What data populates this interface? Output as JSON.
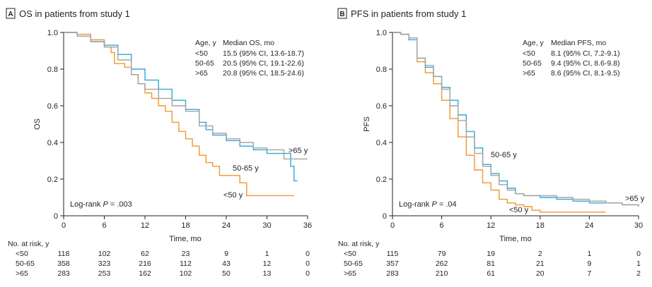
{
  "colors": {
    "lt50": "#F0962D",
    "r50_65": "#2BAAD8",
    "gt65": "#A7A29D",
    "axis": "#231f20"
  },
  "chart_data": [
    {
      "type": "line",
      "panel": "A",
      "title": "OS in patients from study 1",
      "xlabel": "Time, mo",
      "ylabel": "OS",
      "xlim": [
        0,
        36
      ],
      "ylim": [
        0,
        1.0
      ],
      "xticks": [
        "0",
        "6",
        "12",
        "18",
        "24",
        "30",
        "36"
      ],
      "yticks": [
        "0",
        "0.2",
        "0.4",
        "0.6",
        "0.8",
        "1.0"
      ],
      "legend_header": [
        "Age, y",
        "Median OS, mo"
      ],
      "legend_rows": [
        {
          "age": "<50",
          "median": "15.5 (95% CI, 13.6-18.7)"
        },
        {
          "age": "50-65",
          "median": "20.5 (95% CI, 19.1-22.6)"
        },
        {
          "age": ">65",
          "median": "20.8 (95% CI, 18.5-24.6)"
        }
      ],
      "annotation_pre": "Log-rank ",
      "annotation_p": "P",
      "annotation_post": " = .003",
      "curve_labels": {
        "lt50": "<50 y",
        "r50_65": "50-65 y",
        "gt65": ">65 y"
      },
      "series": [
        {
          "key": "lt50",
          "name": "<50",
          "points": [
            [
              0,
              1.0
            ],
            [
              2,
              0.99
            ],
            [
              4,
              0.96
            ],
            [
              6,
              0.92
            ],
            [
              7,
              0.89
            ],
            [
              7.5,
              0.83
            ],
            [
              9,
              0.81
            ],
            [
              10,
              0.77
            ],
            [
              11,
              0.72
            ],
            [
              12,
              0.67
            ],
            [
              13,
              0.64
            ],
            [
              14,
              0.6
            ],
            [
              15,
              0.57
            ],
            [
              16,
              0.51
            ],
            [
              17,
              0.46
            ],
            [
              18,
              0.42
            ],
            [
              19,
              0.38
            ],
            [
              20,
              0.33
            ],
            [
              21,
              0.29
            ],
            [
              22,
              0.27
            ],
            [
              23,
              0.22
            ],
            [
              24,
              0.22
            ],
            [
              26,
              0.18
            ],
            [
              27,
              0.11
            ],
            [
              34,
              0.11
            ]
          ]
        },
        {
          "key": "r50_65",
          "name": "50-65",
          "points": [
            [
              0,
              1.0
            ],
            [
              2,
              0.98
            ],
            [
              4,
              0.95
            ],
            [
              6,
              0.93
            ],
            [
              8,
              0.88
            ],
            [
              10,
              0.8
            ],
            [
              12,
              0.74
            ],
            [
              14,
              0.69
            ],
            [
              16,
              0.63
            ],
            [
              18,
              0.58
            ],
            [
              20,
              0.51
            ],
            [
              21,
              0.47
            ],
            [
              22,
              0.44
            ],
            [
              24,
              0.41
            ],
            [
              26,
              0.38
            ],
            [
              28,
              0.36
            ],
            [
              30,
              0.34
            ],
            [
              33,
              0.34
            ],
            [
              33.5,
              0.27
            ],
            [
              34,
              0.19
            ],
            [
              34.5,
              0.19
            ]
          ]
        },
        {
          "key": "gt65",
          "name": ">65",
          "points": [
            [
              0,
              1.0
            ],
            [
              2,
              0.98
            ],
            [
              4,
              0.95
            ],
            [
              6,
              0.92
            ],
            [
              8,
              0.85
            ],
            [
              10,
              0.77
            ],
            [
              11,
              0.72
            ],
            [
              12,
              0.69
            ],
            [
              14,
              0.64
            ],
            [
              16,
              0.6
            ],
            [
              18,
              0.57
            ],
            [
              20,
              0.49
            ],
            [
              22,
              0.45
            ],
            [
              24,
              0.42
            ],
            [
              26,
              0.4
            ],
            [
              28,
              0.37
            ],
            [
              30,
              0.36
            ],
            [
              32,
              0.36
            ],
            [
              32.5,
              0.31
            ],
            [
              36,
              0.31
            ]
          ]
        }
      ],
      "risk_table": {
        "header": "No. at risk, y",
        "times": [
          "0",
          "6",
          "12",
          "18",
          "24",
          "30",
          "36"
        ],
        "rows": [
          {
            "label": "<50",
            "values": [
              "118",
              "102",
              "62",
              "23",
              "9",
              "1",
              "0"
            ]
          },
          {
            "label": "50-65",
            "values": [
              "358",
              "323",
              "216",
              "112",
              "43",
              "12",
              "0"
            ]
          },
          {
            "label": ">65",
            "values": [
              "283",
              "253",
              "162",
              "102",
              "50",
              "13",
              "0"
            ]
          }
        ]
      }
    },
    {
      "type": "line",
      "panel": "B",
      "title": "PFS in patients from study 1",
      "xlabel": "Time, mo",
      "ylabel": "PFS",
      "xlim": [
        0,
        30
      ],
      "ylim": [
        0,
        1.0
      ],
      "xticks": [
        "0",
        "6",
        "12",
        "18",
        "24",
        "30"
      ],
      "yticks": [
        "0",
        "0.2",
        "0.4",
        "0.6",
        "0.8",
        "1.0"
      ],
      "legend_header": [
        "Age, y",
        "Median PFS, mo"
      ],
      "legend_rows": [
        {
          "age": "<50",
          "median": "8.1 (95% CI, 7.2-9.1)"
        },
        {
          "age": "50-65",
          "median": "9.4 (95% CI, 8.6-9.8)"
        },
        {
          "age": ">65",
          "median": "8.6 (95% CI, 8.1-9.5)"
        }
      ],
      "annotation_pre": "Log-rank ",
      "annotation_p": "P",
      "annotation_post": " = .04",
      "curve_labels": {
        "lt50": "<50 y",
        "r50_65": "50-65 y",
        "gt65": ">65 y"
      },
      "series": [
        {
          "key": "lt50",
          "name": "<50",
          "points": [
            [
              0,
              1.0
            ],
            [
              1,
              0.99
            ],
            [
              2,
              0.97
            ],
            [
              3,
              0.84
            ],
            [
              4,
              0.78
            ],
            [
              5,
              0.72
            ],
            [
              6,
              0.63
            ],
            [
              7,
              0.53
            ],
            [
              8,
              0.43
            ],
            [
              9,
              0.33
            ],
            [
              10,
              0.25
            ],
            [
              11,
              0.18
            ],
            [
              12,
              0.14
            ],
            [
              13,
              0.09
            ],
            [
              14,
              0.07
            ],
            [
              15,
              0.06
            ],
            [
              16,
              0.05
            ],
            [
              17,
              0.03
            ],
            [
              18,
              0.02
            ],
            [
              26,
              0.02
            ]
          ]
        },
        {
          "key": "r50_65",
          "name": "50-65",
          "points": [
            [
              0,
              1.0
            ],
            [
              1,
              0.99
            ],
            [
              2,
              0.96
            ],
            [
              3,
              0.86
            ],
            [
              4,
              0.81
            ],
            [
              5,
              0.76
            ],
            [
              6,
              0.7
            ],
            [
              7,
              0.63
            ],
            [
              8,
              0.55
            ],
            [
              9,
              0.46
            ],
            [
              10,
              0.37
            ],
            [
              11,
              0.28
            ],
            [
              12,
              0.23
            ],
            [
              13,
              0.19
            ],
            [
              14,
              0.15
            ],
            [
              15,
              0.12
            ],
            [
              16,
              0.11
            ],
            [
              18,
              0.1
            ],
            [
              20,
              0.09
            ],
            [
              22,
              0.08
            ],
            [
              24,
              0.07
            ],
            [
              26,
              0.07
            ],
            [
              28,
              0.06
            ],
            [
              30,
              0.05
            ]
          ]
        },
        {
          "key": "gt65",
          "name": ">65",
          "points": [
            [
              0,
              1.0
            ],
            [
              1,
              0.99
            ],
            [
              2,
              0.97
            ],
            [
              3,
              0.86
            ],
            [
              4,
              0.82
            ],
            [
              5,
              0.76
            ],
            [
              6,
              0.69
            ],
            [
              7,
              0.6
            ],
            [
              8,
              0.52
            ],
            [
              9,
              0.43
            ],
            [
              10,
              0.34
            ],
            [
              11,
              0.27
            ],
            [
              12,
              0.22
            ],
            [
              13,
              0.17
            ],
            [
              14,
              0.14
            ],
            [
              15,
              0.12
            ],
            [
              16,
              0.11
            ],
            [
              18,
              0.11
            ],
            [
              20,
              0.1
            ],
            [
              22,
              0.09
            ],
            [
              24,
              0.08
            ],
            [
              26,
              0.07
            ],
            [
              28,
              0.06
            ],
            [
              30,
              0.05
            ]
          ]
        }
      ],
      "risk_table": {
        "header": "No. at risk, y",
        "times": [
          "0",
          "6",
          "12",
          "18",
          "24",
          "30"
        ],
        "rows": [
          {
            "label": "<50",
            "values": [
              "115",
              "79",
              "19",
              "2",
              "1",
              "0"
            ]
          },
          {
            "label": "50-65",
            "values": [
              "357",
              "262",
              "81",
              "21",
              "9",
              "1"
            ]
          },
          {
            "label": ">65",
            "values": [
              "283",
              "210",
              "61",
              "20",
              "7",
              "2"
            ]
          }
        ]
      }
    }
  ]
}
